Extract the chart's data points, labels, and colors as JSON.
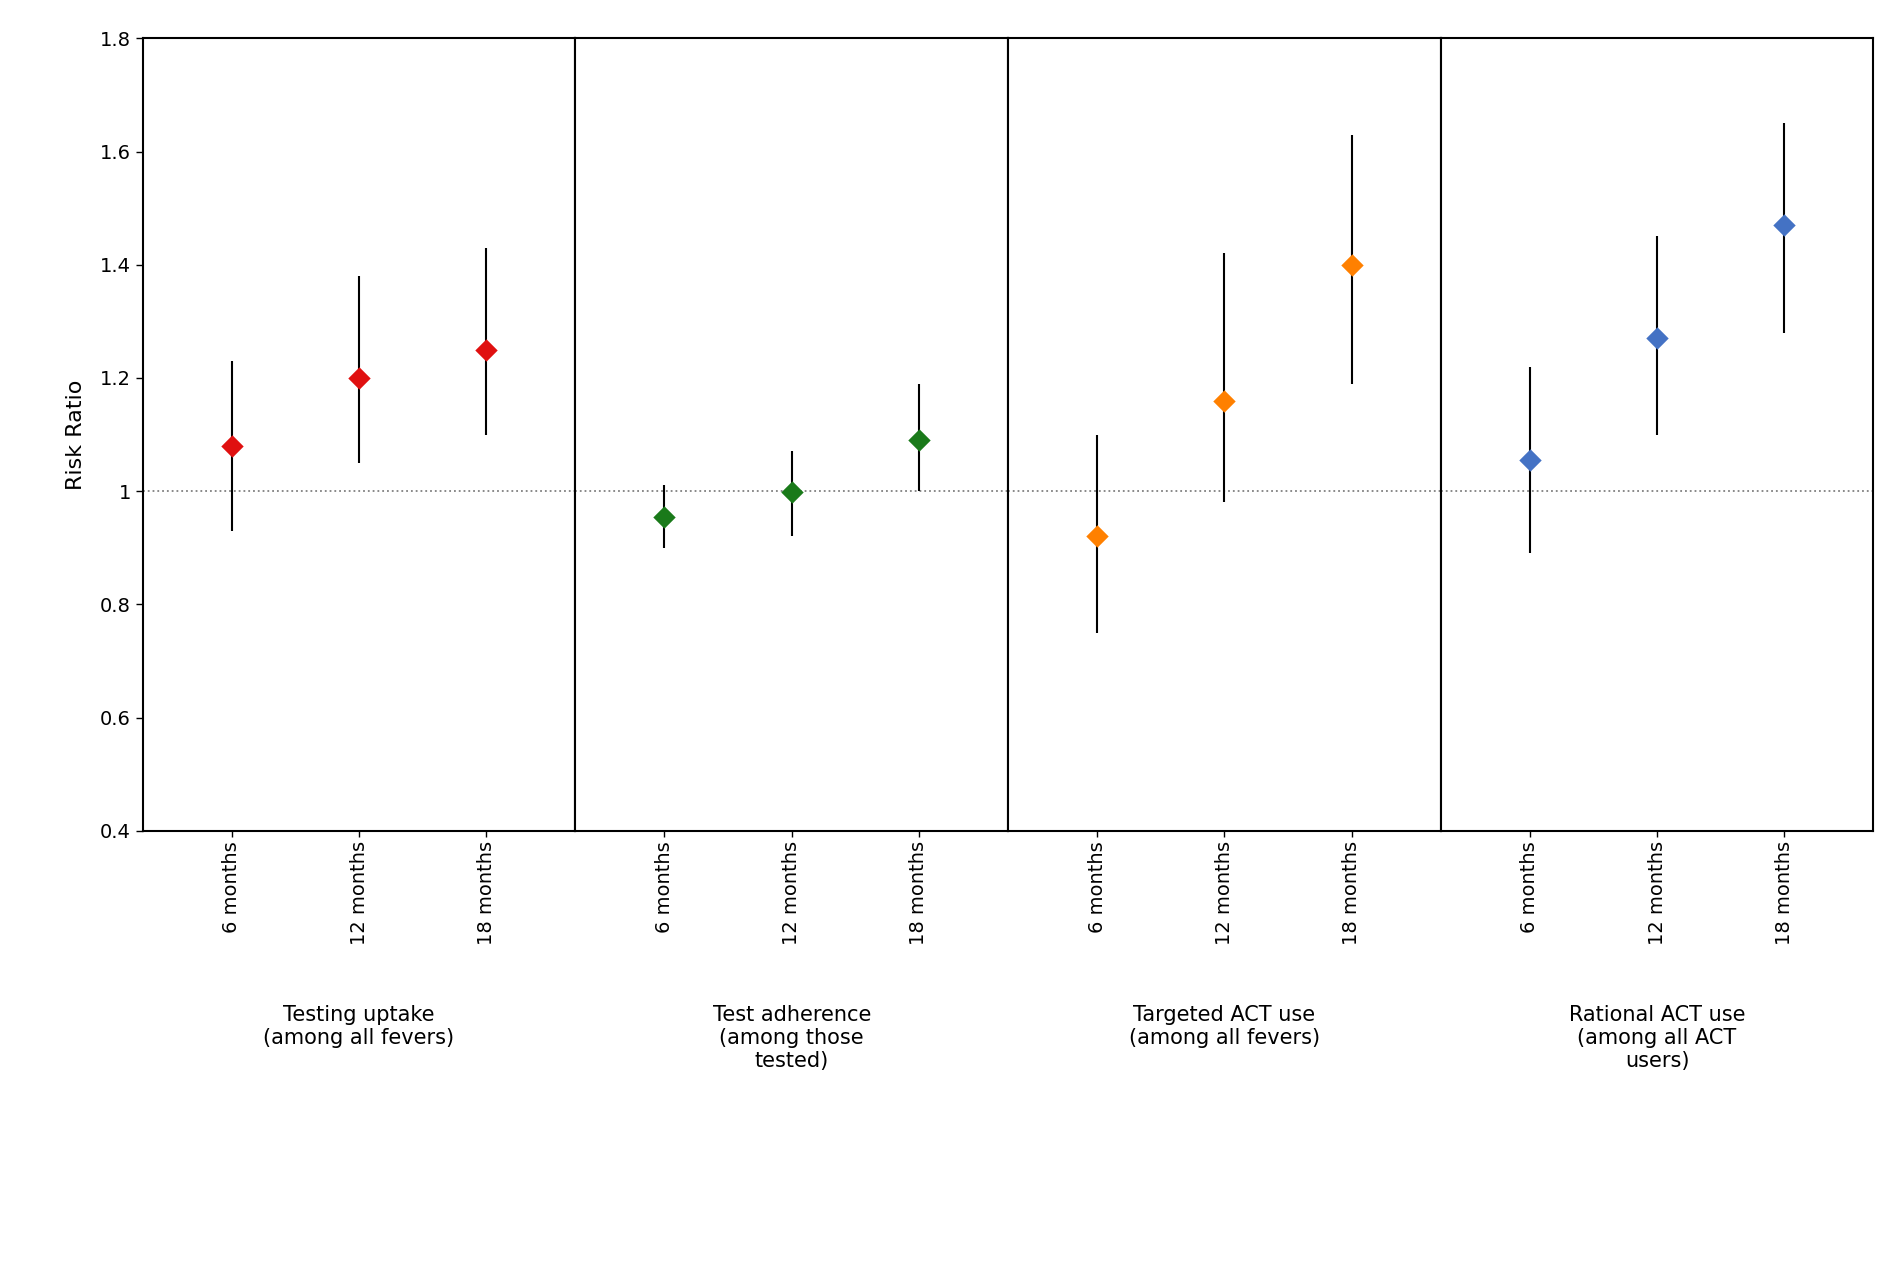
{
  "panels": [
    {
      "label": "Testing uptake\n(among all fevers)",
      "color": "#e01010",
      "timepoints": [
        "6 months",
        "12 months",
        "18 months"
      ],
      "rr": [
        1.08,
        1.2,
        1.25
      ],
      "ci_lo": [
        0.93,
        1.05,
        1.1
      ],
      "ci_hi": [
        1.23,
        1.38,
        1.43
      ]
    },
    {
      "label": "Test adherence\n(among those\ntested)",
      "color": "#1a7a1a",
      "timepoints": [
        "6 months",
        "12 months",
        "18 months"
      ],
      "rr": [
        0.955,
        0.998,
        1.09
      ],
      "ci_lo": [
        0.9,
        0.92,
        1.0
      ],
      "ci_hi": [
        1.01,
        1.07,
        1.19
      ]
    },
    {
      "label": "Targeted ACT use\n(among all fevers)",
      "color": "#ff8000",
      "timepoints": [
        "6 months",
        "12 months",
        "18 months"
      ],
      "rr": [
        0.92,
        1.16,
        1.4
      ],
      "ci_lo": [
        0.75,
        0.98,
        1.19
      ],
      "ci_hi": [
        1.1,
        1.42,
        1.63
      ]
    },
    {
      "label": "Rational ACT use\n(among all ACT\nusers)",
      "color": "#4472c4",
      "timepoints": [
        "6 months",
        "12 months",
        "18 months"
      ],
      "rr": [
        1.055,
        1.27,
        1.47
      ],
      "ci_lo": [
        0.89,
        1.1,
        1.28
      ],
      "ci_hi": [
        1.22,
        1.45,
        1.65
      ]
    }
  ],
  "ylabel": "Risk Ratio",
  "ylim": [
    0.4,
    1.8
  ],
  "yticks": [
    0.4,
    0.6,
    0.8,
    1.0,
    1.2,
    1.4,
    1.6,
    1.8
  ],
  "ytick_labels": [
    "0.4",
    "0.6",
    "0.8",
    "1",
    "1.2",
    "1.4",
    "1.6",
    "1.8"
  ],
  "hline_y": 1.0,
  "background_color": "#ffffff",
  "marker_size": 130,
  "tick_label_fontsize": 14,
  "axis_label_fontsize": 16,
  "panel_label_fontsize": 15
}
